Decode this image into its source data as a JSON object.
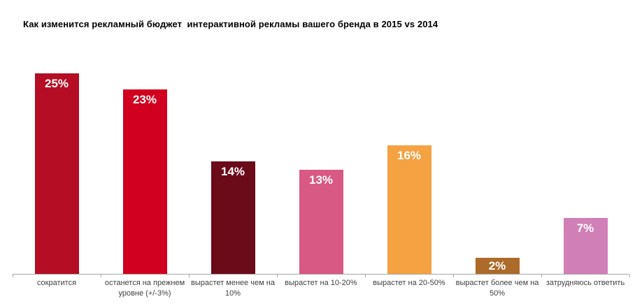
{
  "chart_data": {
    "type": "bar",
    "title": "Как изменится рекламный бюджет  интерактивной рекламы вашего бренда в 2015 vs 2014",
    "categories": [
      "сократится",
      "останется на прежнем уровне (+/-3%)",
      "вырастет менее чем на 10%",
      "вырастет на 10-20%",
      "вырастет на 20-50%",
      "вырастет более чем на 50%",
      "затрудняюсь ответить"
    ],
    "values": [
      25,
      23,
      14,
      13,
      16,
      2,
      7
    ],
    "value_labels": [
      "25%",
      "23%",
      "14%",
      "13%",
      "16%",
      "2%",
      "7%"
    ],
    "bar_colors": [
      "#B50D24",
      "#D10020",
      "#6B0A18",
      "#D85983",
      "#F5A243",
      "#AC6B2A",
      "#D17FB7"
    ],
    "xlabel": "",
    "ylabel": "",
    "ylim": [
      0,
      27
    ],
    "grid": false,
    "legend": false,
    "axis_color": "#A6A6A6",
    "category_label_color": "#3F3F3F",
    "data_label_color": "#FFFFFF"
  }
}
